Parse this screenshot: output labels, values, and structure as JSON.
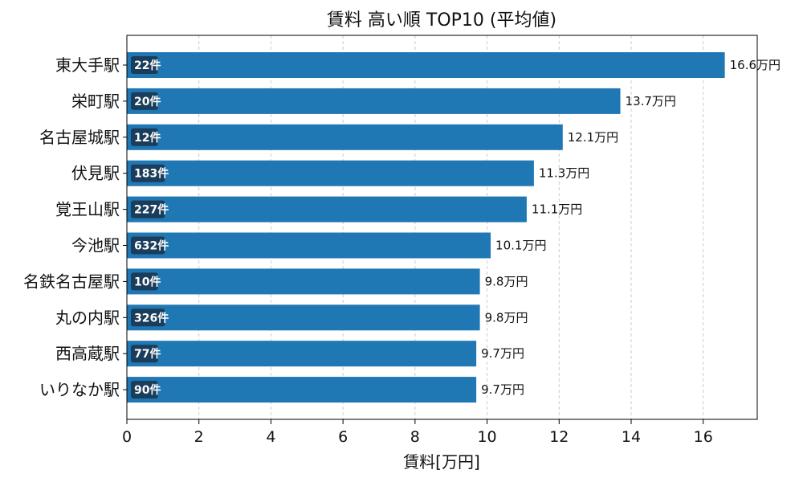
{
  "chart_data": {
    "type": "bar",
    "orientation": "horizontal",
    "title": "賃料 高い順 TOP10 (平均値)",
    "xlabel": "賃料[万円]",
    "ylabel": "",
    "xlim": [
      0,
      17.5
    ],
    "xticks": [
      0,
      2,
      4,
      6,
      8,
      10,
      12,
      14,
      16
    ],
    "grid": "x-dashed",
    "bar_color": "#1f77b4",
    "badge_color": "#1a3d5c",
    "value_suffix": "万円",
    "categories": [
      "東大手駅",
      "栄町駅",
      "名古屋城駅",
      "伏見駅",
      "覚王山駅",
      "今池駅",
      "名鉄名古屋駅",
      "丸の内駅",
      "西高蔵駅",
      "いりなか駅"
    ],
    "values": [
      16.6,
      13.7,
      12.1,
      11.3,
      11.1,
      10.1,
      9.8,
      9.8,
      9.7,
      9.7
    ],
    "value_labels": [
      "16.6万円",
      "13.7万円",
      "12.1万円",
      "11.3万円",
      "11.1万円",
      "10.1万円",
      "9.8万円",
      "9.8万円",
      "9.7万円",
      "9.7万円"
    ],
    "counts": [
      "22件",
      "20件",
      "12件",
      "183件",
      "227件",
      "632件",
      "10件",
      "326件",
      "77件",
      "90件"
    ]
  }
}
